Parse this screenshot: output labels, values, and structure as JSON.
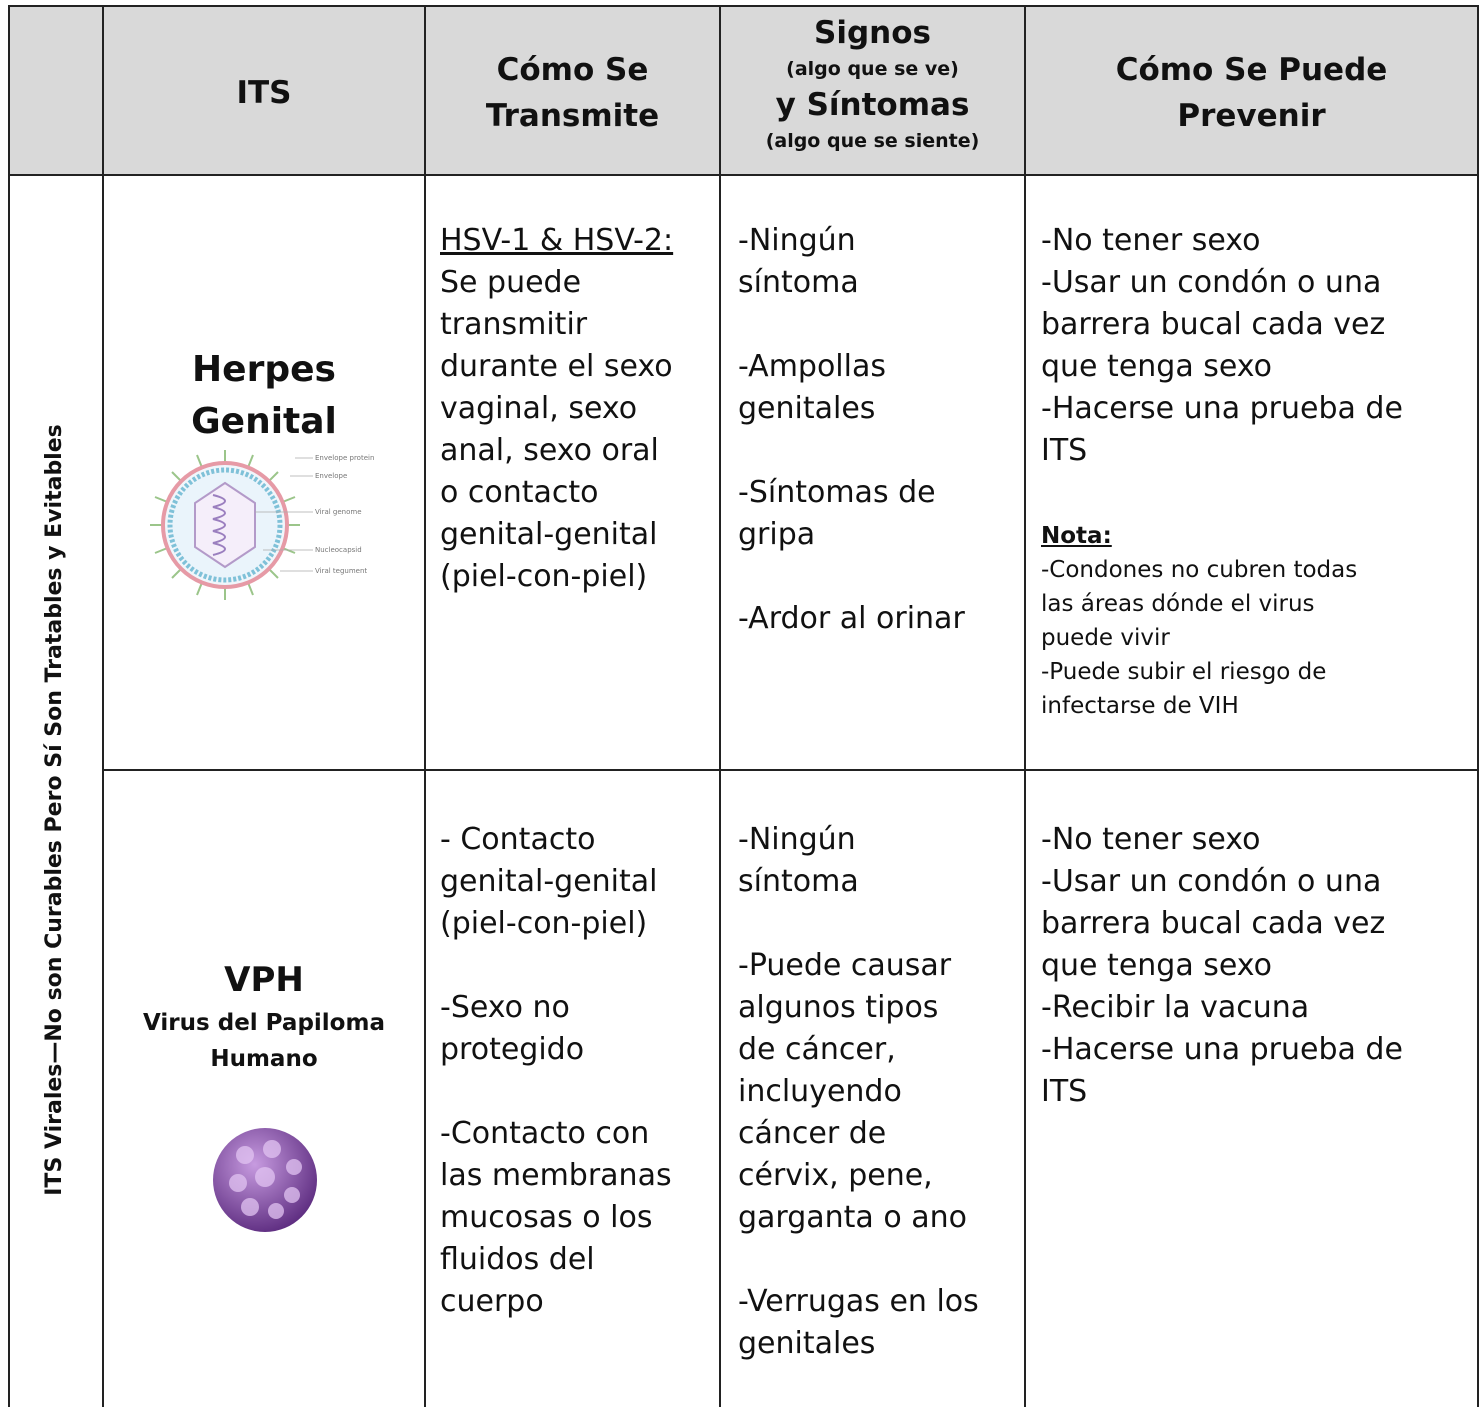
{
  "header": {
    "its": "ITS",
    "transmission": [
      "Cómo Se",
      "Transmite"
    ],
    "signs": {
      "title": "Signos",
      "signs_note": "(algo que se ve)",
      "symptoms": "y Síntomas",
      "symptoms_note": "(algo que se siente)"
    },
    "prevention": [
      "Cómo Se Puede",
      "Prevenir"
    ]
  },
  "side_label": "ITS Virales—No son Curables Pero Sí Son Tratables y Evitables",
  "rows": [
    {
      "name": [
        "Herpes",
        "Genital"
      ],
      "diagram_labels": [
        "Envelope protein",
        "Envelope",
        "Viral genome",
        "Nucleocapsid",
        "Viral tegument"
      ],
      "transmission": {
        "heading": "HSV-1 & HSV-2:",
        "lines": [
          "Se puede",
          "transmitir",
          "durante el sexo",
          "vaginal, sexo",
          "anal, sexo oral",
          "o contacto",
          "genital-genital",
          "(piel-con-piel)"
        ]
      },
      "symptoms": [
        [
          "-Ningún",
          "síntoma"
        ],
        [
          "-Ampollas",
          "genitales"
        ],
        [
          "-Síntomas de",
          "gripa"
        ],
        [
          "-Ardor al orinar"
        ]
      ],
      "prevention": [
        "-No tener sexo",
        "-Usar un condón o una",
        "barrera bucal cada vez",
        "que tenga sexo",
        "-Hacerse una prueba de",
        "ITS"
      ],
      "note": {
        "title": "Nota:",
        "lines": [
          "-Condones no cubren todas",
          "las áreas dónde el virus",
          "puede vivir",
          "-Puede subir el riesgo de",
          "infectarse de VIH"
        ]
      }
    },
    {
      "name": [
        "VPH"
      ],
      "subtitle": [
        "Virus del Papiloma",
        "Humano"
      ],
      "transmission": [
        [
          "- Contacto",
          "genital-genital",
          "(piel-con-piel)"
        ],
        [
          "-Sexo no",
          "protegido"
        ],
        [
          "-Contacto con",
          "las membranas",
          "mucosas o los",
          "fluidos del",
          "cuerpo"
        ]
      ],
      "symptoms": [
        [
          "-Ningún",
          "síntoma"
        ],
        [
          "-Puede causar",
          "algunos tipos",
          "de cáncer,",
          "incluyendo",
          "cáncer de",
          "cérvix, pene,",
          "garganta o ano"
        ],
        [
          "-Verrugas en los",
          "genitales"
        ]
      ],
      "prevention": [
        "-No tener sexo",
        "-Usar un condón o una",
        "barrera bucal cada vez",
        "que tenga sexo",
        "-Recibir la vacuna",
        "-Hacerse una prueba de",
        "ITS"
      ]
    }
  ]
}
